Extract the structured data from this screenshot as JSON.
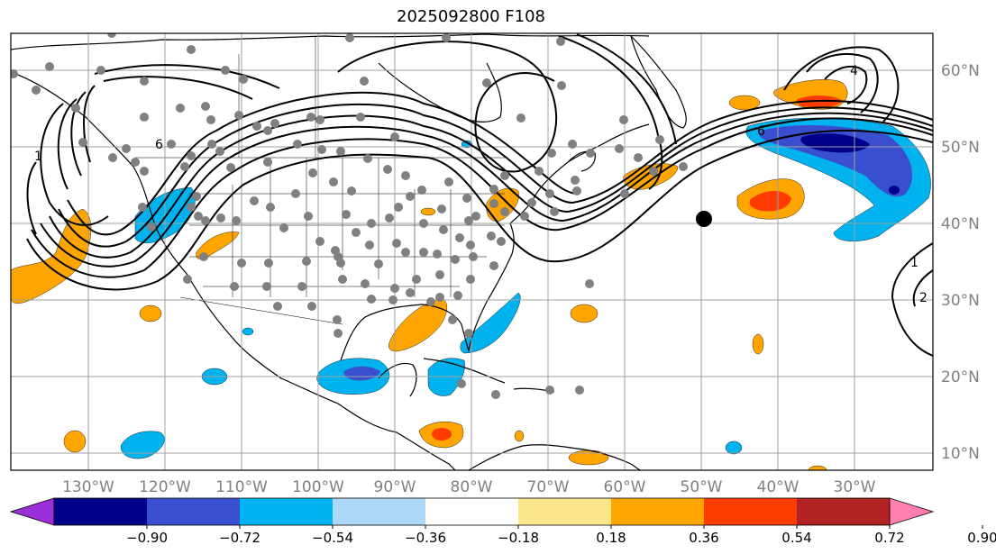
{
  "title": "2025092800 F108",
  "lon_labels": [
    "130°W",
    "120°W",
    "110°W",
    "100°W",
    "90°W",
    "80°W",
    "70°W",
    "60°W",
    "50°W",
    "40°W",
    "30°W"
  ],
  "lat_labels": [
    "60°N",
    "50°N",
    "40°N",
    "30°N",
    "20°N",
    "10°N"
  ],
  "contour_labels": [
    "1",
    "6",
    "4",
    "6",
    "1",
    "2"
  ],
  "colorbar": {
    "ticks": [
      "−0.90",
      "−0.72",
      "−0.54",
      "−0.36",
      "−0.18",
      "0.18",
      "0.36",
      "0.54",
      "0.72",
      "0.90"
    ],
    "colors": [
      "#9b30d9",
      "#00008b",
      "#3a4fd0",
      "#00b2ee",
      "#add8f7",
      "#ffffff",
      "#fce68a",
      "#ffa500",
      "#ff3c00",
      "#b22222",
      "#ff80b0"
    ]
  },
  "colors": {
    "land_outline": "#000000",
    "grid": "#a0a0a0",
    "station": "#808080",
    "marker": "#000000"
  }
}
